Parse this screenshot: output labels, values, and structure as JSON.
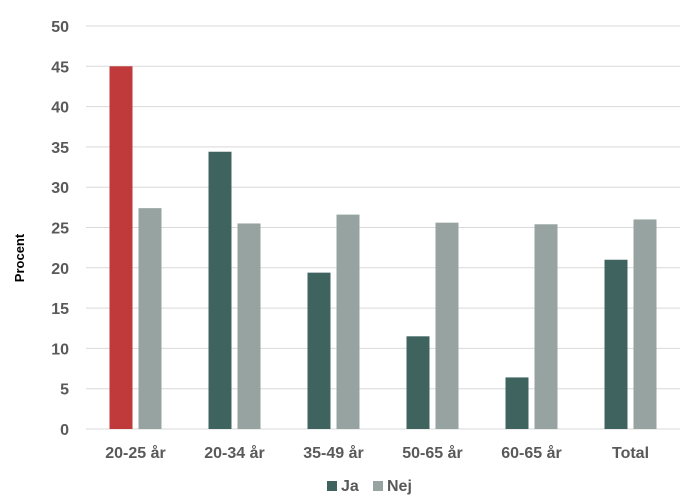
{
  "chart_data": {
    "type": "bar",
    "categories": [
      "20-25 år",
      "20-34 år",
      "35-49 år",
      "50-65 år",
      "60-65 år",
      "Total"
    ],
    "series": [
      {
        "name": "Ja",
        "values": [
          45.0,
          34.4,
          19.4,
          11.5,
          6.4,
          21.0
        ],
        "color": "#3f6460"
      },
      {
        "name": "Nej",
        "values": [
          27.4,
          25.5,
          26.6,
          25.6,
          25.4,
          26.0
        ],
        "color": "#97a3a0"
      }
    ],
    "highlight": {
      "series": 0,
      "category": 0,
      "color": "#c0393b"
    },
    "title": "",
    "xlabel": "",
    "ylabel": "Procent",
    "ylim": [
      0,
      50
    ],
    "yticks": [
      0,
      5,
      10,
      15,
      20,
      25,
      30,
      35,
      40,
      45,
      50
    ],
    "grid": true,
    "grid_color": "#d9d9d9",
    "legend_position": "bottom"
  }
}
